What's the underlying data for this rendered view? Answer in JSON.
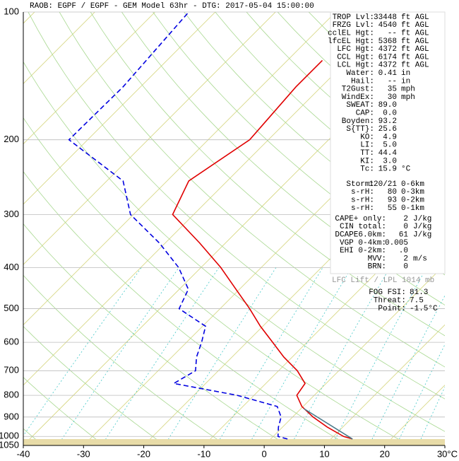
{
  "chart_data": {
    "type": "skewt",
    "title": "RAOB:  EGPF / EGPF - GEM Model 63hr - DTG: 2017-05-04 15:00:00",
    "ylim": [
      1050,
      100
    ],
    "log_y": true,
    "yticks": [
      100,
      200,
      300,
      400,
      500,
      600,
      700,
      800,
      900,
      1000,
      1050
    ],
    "xlim": [
      -40,
      30
    ],
    "xticks": [
      -40,
      -30,
      -20,
      -10,
      0,
      10,
      20,
      {
        "value": 30,
        "label": "30°C"
      }
    ],
    "grid": true,
    "series": [
      {
        "color": "#e00000",
        "line_style": "solid",
        "x": [
          13.6,
          11.7,
          7.4,
          3.4,
          -0.2,
          -2.9,
          -3.5,
          -6.9,
          -11.4,
          -15.7,
          -20.4,
          -25.1,
          -30.6,
          -36.7,
          -44.3,
          -53.5,
          -56.4,
          -53.1,
          -54.2,
          -54.2
        ],
        "values": [
          1014,
          1000,
          950,
          900,
          850,
          800,
          750,
          700,
          650,
          600,
          550,
          500,
          450,
          400,
          350,
          300,
          250,
          200,
          150,
          130
        ]
      },
      {
        "color": "#0000e0",
        "line_style": "dashed",
        "x": [
          2.8,
          0.8,
          -0.7,
          -1.9,
          -4.3,
          -12.8,
          -25.3,
          -23.8,
          -25.9,
          -27.5,
          -29.5,
          -36.8,
          -38.5,
          -43.7,
          -51.0,
          -60.5,
          -67.3,
          -83.1,
          -82.9,
          -84.4
        ],
        "values": [
          1014,
          1000,
          950,
          900,
          850,
          800,
          750,
          700,
          650,
          600,
          550,
          500,
          450,
          400,
          350,
          300,
          250,
          200,
          150,
          100
        ]
      },
      {
        "color": "#4a7a8a",
        "line_style": "solid",
        "x": [
          13.6,
          0.5
        ],
        "values": [
          1014,
          860
        ]
      }
    ]
  },
  "panel": {
    "groups": [
      [
        [
          "TROP Lvl:",
          "33448",
          "ft AGL"
        ],
        [
          "FRZG Lvl:",
          "4540",
          "ft AGL"
        ],
        [
          "cclEL Hgt:",
          "--",
          "ft AGL"
        ],
        [
          "lfcEL Hgt:",
          "5368",
          "ft AGL"
        ],
        [
          "LFC Hgt:",
          "4372",
          "ft AGL"
        ],
        [
          "CCL Hgt:",
          "6174",
          "ft AGL"
        ],
        [
          "LCL Hgt:",
          "4372",
          "ft AGL"
        ],
        [
          "Water:",
          "0.41",
          "in"
        ],
        [
          "Hail:",
          "--",
          "in"
        ],
        [
          "T2Gust:",
          "35",
          "mph"
        ],
        [
          "WindEx:",
          "30",
          "mph"
        ],
        [
          "SWEAT:",
          "89.0"
        ],
        [
          "CAP:",
          "0.0"
        ],
        [
          "Boyden:",
          "93.2"
        ],
        [
          "S{TT}:",
          "25.6"
        ],
        [
          "KO:",
          "4.9"
        ],
        [
          "LI:",
          "5.0"
        ],
        [
          "TT:",
          "44.4"
        ],
        [
          "KI:",
          "3.0"
        ],
        [
          "Tc:",
          "15.9",
          "°C"
        ]
      ],
      [
        [
          "Storm:",
          "120/21",
          "0-6km"
        ],
        [
          "s-rH:",
          "80",
          "0-3km"
        ],
        [
          "s-rH:",
          "93",
          "0-2km"
        ],
        [
          "s-rH:",
          "55",
          "0-1km"
        ]
      ],
      [
        [
          "CAPE+ only:",
          "2",
          "J/kg"
        ],
        [
          "CIN total:",
          "0",
          "J/kg"
        ],
        [
          "DCAPE6.0km:",
          "61",
          "J/kg"
        ],
        [
          "VGP 0-4km:",
          "0.005"
        ],
        [
          "EHI 0-2km:",
          ".0"
        ],
        [
          "MVV:",
          "2",
          "m/s"
        ],
        [
          "BRN:",
          "0"
        ]
      ]
    ],
    "footer": "LFC Lift / LPL 1014 mb",
    "fog": [
      [
        "FOG FSI:",
        "81.3"
      ],
      [
        "Threat:",
        "7.5"
      ],
      [
        "Point:",
        "-1.5°C"
      ]
    ]
  }
}
